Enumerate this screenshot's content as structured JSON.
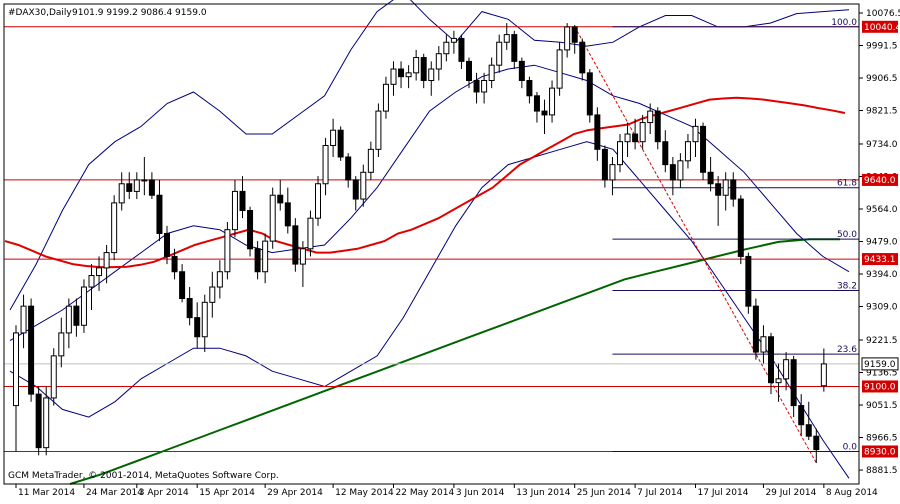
{
  "header": {
    "symbol": "#DAX30,Daily",
    "ohlc": "9101.9 9199.2 9086.4 9159.0"
  },
  "footer_text": "GCM MetaTrader, © 2001-2014, MetaQuotes Software Corp.",
  "colors": {
    "background": "#ffffff",
    "frame": "#000000",
    "bull_candle": "#ffffff",
    "bear_candle": "#000000",
    "bollinger": "#00007f",
    "ma_red": "#e00000",
    "ma_green": "#006400",
    "level_line": "#d40000",
    "fib_line": "#1a0a5a",
    "trend_dash": "#e00000",
    "label_bg_red": "#d40000",
    "price_tag_bg": "#ffffff"
  },
  "chart_data": {
    "type": "candlestick",
    "ylim": [
      8845,
      10100
    ],
    "y_ticks": [
      "10076.5",
      "9991.5",
      "9906.5",
      "9821.5",
      "9734.0",
      "9649.0",
      "9564.0",
      "9479.0",
      "9394.0",
      "9309.0",
      "9221.5",
      "9136.5",
      "9051.5",
      "8966.5",
      "8881.5"
    ],
    "x_labels": [
      "11 Mar 2014",
      "24 Mar 2014",
      "3 Apr 2014",
      "15 Apr 2014",
      "29 Apr 2014",
      "12 May 2014",
      "22 May 2014",
      "3 Jun 2014",
      "13 Jun 2014",
      "25 Jun 2014",
      "7 Jul 2014",
      "17 Jul 2014",
      "29 Jul 2014",
      "8 Aug 2014"
    ],
    "x_label_index": [
      0,
      9,
      16,
      24,
      33,
      42,
      50,
      58,
      66,
      74,
      82,
      90,
      99,
      107
    ],
    "candles": [
      [
        9050,
        9260,
        8930,
        9240
      ],
      [
        9240,
        9340,
        9200,
        9310
      ],
      [
        9310,
        9330,
        9060,
        9080
      ],
      [
        9080,
        9100,
        8920,
        8940
      ],
      [
        8940,
        9100,
        8920,
        9070
      ],
      [
        9070,
        9200,
        9050,
        9180
      ],
      [
        9180,
        9280,
        9150,
        9240
      ],
      [
        9240,
        9330,
        9200,
        9310
      ],
      [
        9310,
        9330,
        9230,
        9260
      ],
      [
        9260,
        9380,
        9240,
        9360
      ],
      [
        9360,
        9420,
        9300,
        9390
      ],
      [
        9390,
        9440,
        9350,
        9410
      ],
      [
        9410,
        9470,
        9370,
        9450
      ],
      [
        9450,
        9600,
        9430,
        9580
      ],
      [
        9580,
        9660,
        9560,
        9630
      ],
      [
        9630,
        9660,
        9590,
        9610
      ],
      [
        9610,
        9660,
        9590,
        9640
      ],
      [
        9640,
        9700,
        9600,
        9640
      ],
      [
        9640,
        9660,
        9590,
        9600
      ],
      [
        9600,
        9640,
        9480,
        9500
      ],
      [
        9500,
        9520,
        9420,
        9440
      ],
      [
        9440,
        9460,
        9380,
        9400
      ],
      [
        9400,
        9420,
        9320,
        9330
      ],
      [
        9330,
        9360,
        9260,
        9280
      ],
      [
        9280,
        9320,
        9200,
        9230
      ],
      [
        9230,
        9340,
        9190,
        9320
      ],
      [
        9320,
        9400,
        9280,
        9360
      ],
      [
        9360,
        9430,
        9330,
        9400
      ],
      [
        9400,
        9530,
        9380,
        9510
      ],
      [
        9510,
        9640,
        9490,
        9610
      ],
      [
        9610,
        9650,
        9540,
        9560
      ],
      [
        9560,
        9570,
        9440,
        9460
      ],
      [
        9460,
        9480,
        9380,
        9400
      ],
      [
        9400,
        9500,
        9370,
        9480
      ],
      [
        9480,
        9620,
        9460,
        9600
      ],
      [
        9600,
        9640,
        9560,
        9580
      ],
      [
        9580,
        9620,
        9500,
        9520
      ],
      [
        9520,
        9540,
        9400,
        9420
      ],
      [
        9420,
        9480,
        9360,
        9460
      ],
      [
        9460,
        9560,
        9440,
        9540
      ],
      [
        9540,
        9650,
        9520,
        9630
      ],
      [
        9630,
        9750,
        9600,
        9730
      ],
      [
        9730,
        9800,
        9700,
        9770
      ],
      [
        9770,
        9780,
        9690,
        9700
      ],
      [
        9700,
        9710,
        9620,
        9640
      ],
      [
        9640,
        9650,
        9560,
        9590
      ],
      [
        9590,
        9680,
        9570,
        9660
      ],
      [
        9660,
        9740,
        9640,
        9720
      ],
      [
        9720,
        9840,
        9700,
        9820
      ],
      [
        9820,
        9910,
        9800,
        9890
      ],
      [
        9890,
        9950,
        9860,
        9930
      ],
      [
        9930,
        9950,
        9880,
        9910
      ],
      [
        9910,
        9940,
        9880,
        9920
      ],
      [
        9920,
        9980,
        9900,
        9960
      ],
      [
        9960,
        9970,
        9880,
        9900
      ],
      [
        9900,
        9950,
        9860,
        9930
      ],
      [
        9930,
        9990,
        9900,
        9970
      ],
      [
        9970,
        10020,
        9950,
        10000
      ],
      [
        10000,
        10030,
        9970,
        10010
      ],
      [
        10010,
        10020,
        9930,
        9950
      ],
      [
        9950,
        9960,
        9880,
        9900
      ],
      [
        9900,
        9920,
        9840,
        9870
      ],
      [
        9870,
        9920,
        9840,
        9900
      ],
      [
        9900,
        9960,
        9880,
        9940
      ],
      [
        9940,
        10020,
        9920,
        10000
      ],
      [
        10000,
        10050,
        9980,
        10020
      ],
      [
        10020,
        10030,
        9930,
        9950
      ],
      [
        9950,
        9960,
        9880,
        9900
      ],
      [
        9900,
        9910,
        9840,
        9860
      ],
      [
        9860,
        9870,
        9790,
        9820
      ],
      [
        9820,
        9850,
        9760,
        9810
      ],
      [
        9810,
        9900,
        9790,
        9880
      ],
      [
        9880,
        10000,
        9860,
        9980
      ],
      [
        9980,
        10050,
        9960,
        10040
      ],
      [
        10040,
        10045,
        9970,
        10000
      ],
      [
        10000,
        10010,
        9900,
        9920
      ],
      [
        9920,
        9930,
        9790,
        9810
      ],
      [
        9810,
        9830,
        9690,
        9720
      ],
      [
        9720,
        9730,
        9620,
        9640
      ],
      [
        9640,
        9700,
        9600,
        9680
      ],
      [
        9680,
        9760,
        9660,
        9740
      ],
      [
        9740,
        9790,
        9700,
        9760
      ],
      [
        9760,
        9800,
        9720,
        9740
      ],
      [
        9740,
        9810,
        9720,
        9790
      ],
      [
        9790,
        9840,
        9760,
        9820
      ],
      [
        9820,
        9830,
        9720,
        9740
      ],
      [
        9740,
        9770,
        9660,
        9680
      ],
      [
        9680,
        9700,
        9600,
        9640
      ],
      [
        9640,
        9710,
        9620,
        9690
      ],
      [
        9690,
        9760,
        9670,
        9740
      ],
      [
        9740,
        9800,
        9700,
        9780
      ],
      [
        9780,
        9790,
        9640,
        9660
      ],
      [
        9660,
        9700,
        9610,
        9630
      ],
      [
        9630,
        9650,
        9520,
        9600
      ],
      [
        9600,
        9660,
        9560,
        9640
      ],
      [
        9640,
        9660,
        9570,
        9590
      ],
      [
        9590,
        9600,
        9420,
        9440
      ],
      [
        9440,
        9450,
        9290,
        9310
      ],
      [
        9310,
        9330,
        9170,
        9190
      ],
      [
        9190,
        9260,
        9160,
        9230
      ],
      [
        9230,
        9240,
        9080,
        9110
      ],
      [
        9110,
        9160,
        9060,
        9120
      ],
      [
        9120,
        9190,
        9090,
        9170
      ],
      [
        9170,
        9180,
        9020,
        9050
      ],
      [
        9050,
        9080,
        8970,
        9000
      ],
      [
        9000,
        9060,
        8960,
        8970
      ],
      [
        8970,
        8990,
        8900,
        8935
      ],
      [
        9101.9,
        9199.2,
        9086.4,
        9159.0
      ]
    ],
    "moving_average_red": [
      9480,
      9470,
      9455,
      9440,
      9430,
      9420,
      9415,
      9412,
      9412,
      9413,
      9418,
      9426,
      9440,
      9455,
      9470,
      9480,
      9490,
      9500,
      9510,
      9500,
      9480,
      9470,
      9460,
      9450,
      9450,
      9455,
      9460,
      9470,
      9480,
      9500,
      9510,
      9525,
      9540,
      9560,
      9580,
      9600,
      9620,
      9650,
      9680,
      9700,
      9720,
      9740,
      9760,
      9770,
      9775,
      9780,
      9785,
      9800,
      9810,
      9820,
      9830,
      9840,
      9850,
      9853,
      9855,
      9853,
      9850,
      9845,
      9840,
      9835,
      9828,
      9822,
      9815
    ],
    "moving_average_green": [
      8845,
      8870,
      8900,
      8930,
      8960,
      8990,
      9020,
      9050,
      9080,
      9110,
      9140,
      9170,
      9200,
      9230,
      9260,
      9290,
      9320,
      9350,
      9380,
      9400,
      9420,
      9440,
      9460,
      9478,
      9485,
      9485
    ],
    "bollinger": {
      "upper": [
        9300,
        9420,
        9560,
        9680,
        9740,
        9780,
        9840,
        9870,
        9820,
        9760,
        9760,
        9810,
        9860,
        9980,
        10080,
        10130,
        10060,
        10000,
        10080,
        10060,
        10005,
        10000,
        9990,
        10000,
        10040,
        10070,
        10070,
        10040,
        10040,
        10050,
        10075,
        10080,
        10085
      ],
      "middle": [
        9220,
        9260,
        9300,
        9350,
        9400,
        9450,
        9500,
        9520,
        9510,
        9470,
        9450,
        9460,
        9470,
        9540,
        9620,
        9720,
        9820,
        9870,
        9910,
        9930,
        9940,
        9920,
        9900,
        9860,
        9840,
        9810,
        9780,
        9720,
        9660,
        9580,
        9500,
        9440,
        9400
      ],
      "lower": [
        9140,
        9100,
        9040,
        9020,
        9060,
        9120,
        9160,
        9200,
        9200,
        9180,
        9140,
        9120,
        9100,
        9140,
        9180,
        9280,
        9400,
        9520,
        9620,
        9680,
        9700,
        9720,
        9740,
        9720,
        9640,
        9560,
        9480,
        9380,
        9280,
        9180,
        9070,
        8960,
        8860
      ]
    },
    "horizontal_levels": [
      {
        "label": "10040.4",
        "price": 10040.4
      },
      {
        "label": "9640.0",
        "price": 9640.0
      },
      {
        "label": "9433.1",
        "price": 9433.1
      },
      {
        "label": "9100.0",
        "price": 9100.0
      },
      {
        "label": "8930.0",
        "price": 8930.0
      }
    ],
    "current_price": {
      "label": "9159.0",
      "price": 9159.0
    },
    "fibonacci": {
      "levels": [
        {
          "label": "100.0",
          "price": 10040.4
        },
        {
          "label": "61.8",
          "price": 9619.6
        },
        {
          "label": "50.0",
          "price": 9485.2
        },
        {
          "label": "38.2",
          "price": 9350.8
        },
        {
          "label": "23.6",
          "price": 9184.5
        },
        {
          "label": "0.0",
          "price": 8930.0
        }
      ],
      "start_index": 79,
      "trend_start": {
        "index": 74,
        "price": 10040.4
      },
      "trend_end": {
        "index": 106,
        "price": 8900
      }
    }
  }
}
